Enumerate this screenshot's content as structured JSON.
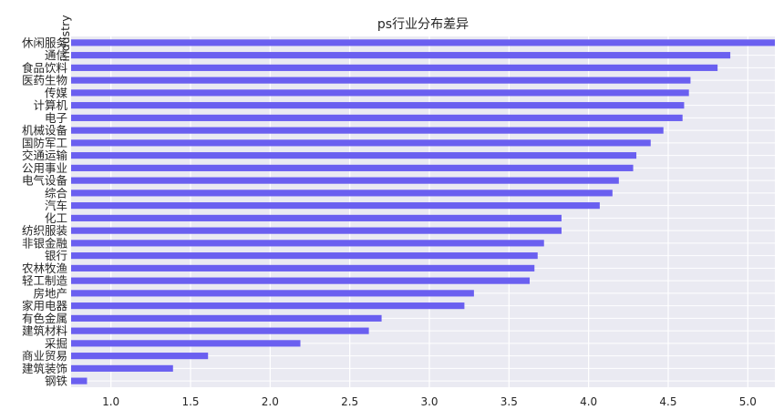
{
  "chart_data": {
    "type": "bar",
    "orientation": "horizontal",
    "title": "ps行业分布差异",
    "xlabel": "",
    "ylabel": "industry",
    "xlim": [
      0.75,
      5.17
    ],
    "x_ticks": [
      "1.0",
      "1.5",
      "2.0",
      "2.5",
      "3.0",
      "3.5",
      "4.0",
      "4.5",
      "5.0"
    ],
    "grid": true,
    "legend": "none",
    "bar_color": "#6a5ff0",
    "background_color": "#eaeaf2",
    "categories": [
      "休闲服务",
      "通信",
      "食品饮料",
      "医药生物",
      "传媒",
      "计算机",
      "电子",
      "机械设备",
      "国防军工",
      "交通运输",
      "公用事业",
      "电气设备",
      "综合",
      "汽车",
      "化工",
      "纺织服装",
      "非银金融",
      "银行",
      "农林牧渔",
      "轻工制造",
      "房地产",
      "家用电器",
      "有色金属",
      "建筑材料",
      "采掘",
      "商业贸易",
      "建筑装饰",
      "钢铁"
    ],
    "values": [
      5.17,
      4.89,
      4.81,
      4.64,
      4.63,
      4.6,
      4.59,
      4.47,
      4.39,
      4.3,
      4.28,
      4.19,
      4.15,
      4.07,
      3.83,
      3.83,
      3.72,
      3.68,
      3.66,
      3.63,
      3.28,
      3.22,
      2.7,
      2.62,
      2.19,
      1.61,
      1.39,
      0.85
    ]
  }
}
